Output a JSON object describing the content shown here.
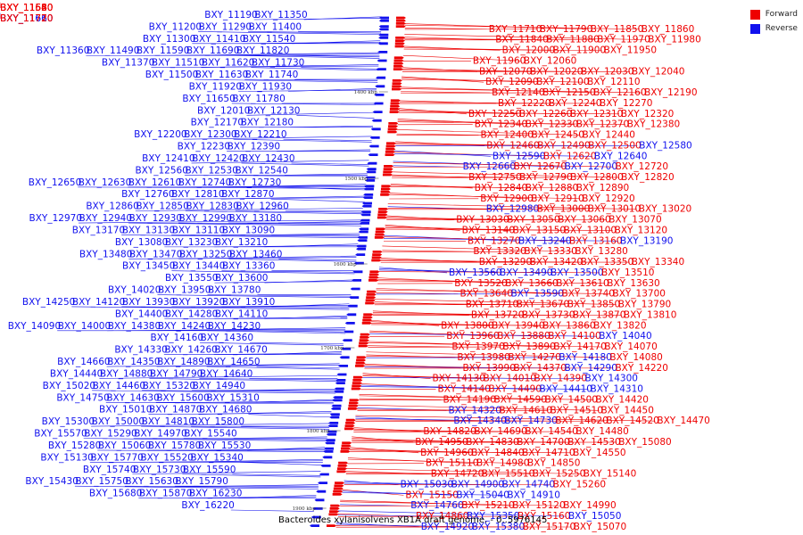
{
  "caption": "Bacteroides xylanisolvens XB1A draft genome. - 0..5976145",
  "legend": [
    {
      "label": "Forward",
      "color": "#ee0000"
    },
    {
      "label": "Reverse",
      "color": "#1111ee"
    }
  ],
  "ticks": [
    "1300 kbp",
    "1400 kbp",
    "1500 kbp",
    "1600 kbp",
    "1700 kbp",
    "1800 kbp",
    "1900 kbp"
  ],
  "left_labels": [
    "BXY_11190",
    "BXY_11350",
    "BXY_11200",
    "BXY_11290",
    "BXY_11400",
    "BXY_11300",
    "BXY_11410",
    "BXY_11540",
    "BXY_11360",
    "BXY_11490",
    "BXY_11590",
    "BXY_11690",
    "BXY_11820",
    "BXY_11370",
    "BXY_11510",
    "BXY_11620",
    "BXY_11730",
    "BXY_11500",
    "BXY_11630",
    "BXY_11740",
    "BXY_11920",
    "BXY_11930",
    "BXY_11650",
    "BXY_11780",
    "BXY_12010",
    "BXY_12130",
    "BXY_12170",
    "BXY_12180",
    "BXY_12200",
    "BXY_12300",
    "BXY_12210",
    "BXY_12230",
    "BXY_12390",
    "BXY_12410",
    "BXY_12420",
    "BXY_12430",
    "BXY_12560",
    "BXY_12530",
    "BXY_12540",
    "BXY_12650",
    "BXY_12630",
    "BXY_12610",
    "BXY_12740",
    "BXY_12730",
    "BXY_12760",
    "BXY_12810",
    "BXY_12870",
    "BXY_12860",
    "BXY_12850",
    "BXY_12830",
    "BXY_12960",
    "BXY_12970",
    "BXY_12940",
    "BXY_12930",
    "BXY_12990",
    "BXY_13180",
    "BXY_13170",
    "BXY_13130",
    "BXY_13110",
    "BXY_13090",
    "BXY_13080",
    "BXY_13230",
    "BXY_13210",
    "BXY_13480",
    "BXY_13470",
    "BXY_13250",
    "BXY_13460",
    "BXY_13450",
    "BXY_13440",
    "BXY_13360",
    "BXY_13550",
    "BXY_13600",
    "BXY_14020",
    "BXY_13950",
    "BXY_13780",
    "BXY_14250",
    "BXY_14120",
    "BXY_13930",
    "BXY_13920",
    "BXY_13910",
    "BXY_14400",
    "BXY_14280",
    "BXY_14110",
    "BXY_14090",
    "BXY_14000",
    "BXY_14380",
    "BXY_14240",
    "BXY_14230",
    "BXY_14160",
    "BXY_14360",
    "BXY_14330",
    "BXY_14260",
    "BXY_14670",
    "BXY_14660",
    "BXY_14350",
    "BXY_14890",
    "BXY_14650",
    "BXY_14440",
    "BXY_14880",
    "BXY_14790",
    "BXY_14640",
    "BXY_15020",
    "BXY_14460",
    "BXY_15320",
    "BXY_14940",
    "BXY_14750",
    "BXY_14630",
    "BXY_15600",
    "BXY_15310",
    "BXY_15010",
    "BXY_14870",
    "BXY_14680",
    "BXY_15580",
    "BXY_15300",
    "BXY_15000",
    "BXY_14810",
    "BXY_15800",
    "BXY_15570",
    "BXY_15290",
    "BXY_14970",
    "BXY_15540",
    "BXY_15280",
    "BXY_15060",
    "BXY_15780",
    "BXY_15530",
    "BXY_15240",
    "BXY_15130",
    "BXY_15770",
    "BXY_15520",
    "BXY_15340",
    "BXY_15740",
    "BXY_15730",
    "BXY_15590",
    "BXY_15430",
    "BXY_15750",
    "BXY_15630",
    "BXY_15790",
    "BXY_15680",
    "BXY_15870",
    "BXY_16230",
    "BXY_16220"
  ],
  "right_labels": [
    {
      "t": "BXY_11520",
      "c": "f"
    },
    {
      "t": "BXY_11560",
      "c": "f"
    },
    {
      "t": "BXY_11640",
      "c": "f"
    },
    {
      "t": "BXY_11680",
      "c": "f"
    },
    {
      "t": "BXY_11610",
      "c": "r"
    },
    {
      "t": "BXY_11660",
      "c": "r"
    },
    {
      "t": "BXY_11720",
      "c": "f"
    },
    {
      "t": "BXY_11770",
      "c": "f"
    },
    {
      "t": "BXY_11710",
      "c": "f"
    },
    {
      "t": "BXY_11790",
      "c": "f"
    },
    {
      "t": "BXY_11850",
      "c": "f"
    },
    {
      "t": "BXY_11860",
      "c": "f"
    },
    {
      "t": "BXY_11840",
      "c": "f"
    },
    {
      "t": "BXY_11880",
      "c": "f"
    },
    {
      "t": "BXY_11970",
      "c": "f"
    },
    {
      "t": "BXY_11980",
      "c": "f"
    },
    {
      "t": "BXY_12000",
      "c": "f"
    },
    {
      "t": "BXY_11900",
      "c": "f"
    },
    {
      "t": "BXY_11950",
      "c": "f"
    },
    {
      "t": "BXY_11960",
      "c": "f"
    },
    {
      "t": "BXY_12060",
      "c": "f"
    },
    {
      "t": "BXY_12070",
      "c": "f"
    },
    {
      "t": "BXY_12020",
      "c": "f"
    },
    {
      "t": "BXY_12030",
      "c": "f"
    },
    {
      "t": "BXY_12040",
      "c": "f"
    },
    {
      "t": "BXY_12090",
      "c": "f"
    },
    {
      "t": "BXY_12100",
      "c": "f"
    },
    {
      "t": "BXY_12110",
      "c": "f"
    },
    {
      "t": "BXY_12140",
      "c": "f"
    },
    {
      "t": "BXY_12150",
      "c": "f"
    },
    {
      "t": "BXY_12160",
      "c": "f"
    },
    {
      "t": "BXY_12190",
      "c": "f"
    },
    {
      "t": "BXY_12220",
      "c": "f"
    },
    {
      "t": "BXY_12240",
      "c": "f"
    },
    {
      "t": "BXY_12270",
      "c": "f"
    },
    {
      "t": "BXY_12250",
      "c": "f"
    },
    {
      "t": "BXY_12260",
      "c": "f"
    },
    {
      "t": "BXY_12310",
      "c": "f"
    },
    {
      "t": "BXY_12320",
      "c": "f"
    },
    {
      "t": "BXY_12340",
      "c": "f"
    },
    {
      "t": "BXY_12330",
      "c": "f"
    },
    {
      "t": "BXY_12370",
      "c": "f"
    },
    {
      "t": "BXY_12380",
      "c": "f"
    },
    {
      "t": "BXY_12400",
      "c": "f"
    },
    {
      "t": "BXY_12450",
      "c": "f"
    },
    {
      "t": "BXY_12440",
      "c": "f"
    },
    {
      "t": "BXY_12460",
      "c": "f"
    },
    {
      "t": "BXY_12490",
      "c": "f"
    },
    {
      "t": "BXY_12500",
      "c": "f"
    },
    {
      "t": "BXY_12580",
      "c": "r"
    },
    {
      "t": "BXY_12590",
      "c": "r"
    },
    {
      "t": "BXY_12620",
      "c": "f"
    },
    {
      "t": "BXY_12640",
      "c": "r"
    },
    {
      "t": "BXY_12660",
      "c": "r"
    },
    {
      "t": "BXY_12670",
      "c": "f"
    },
    {
      "t": "BXY_12700",
      "c": "r"
    },
    {
      "t": "BXY_12720",
      "c": "f"
    },
    {
      "t": "BXY_12750",
      "c": "f"
    },
    {
      "t": "BXY_12790",
      "c": "f"
    },
    {
      "t": "BXY_12800",
      "c": "f"
    },
    {
      "t": "BXY_12820",
      "c": "f"
    },
    {
      "t": "BXY_12840",
      "c": "f"
    },
    {
      "t": "BXY_12880",
      "c": "f"
    },
    {
      "t": "BXY_12890",
      "c": "f"
    },
    {
      "t": "BXY_12900",
      "c": "f"
    },
    {
      "t": "BXY_12910",
      "c": "f"
    },
    {
      "t": "BXY_12920",
      "c": "f"
    },
    {
      "t": "BXY_12980",
      "c": "r"
    },
    {
      "t": "BXY_13000",
      "c": "f"
    },
    {
      "t": "BXY_13010",
      "c": "f"
    },
    {
      "t": "BXY_13020",
      "c": "f"
    },
    {
      "t": "BXY_13030",
      "c": "f"
    },
    {
      "t": "BXY_13050",
      "c": "f"
    },
    {
      "t": "BXY_13060",
      "c": "f"
    },
    {
      "t": "BXY_13070",
      "c": "f"
    },
    {
      "t": "BXY_13140",
      "c": "f"
    },
    {
      "t": "BXY_13150",
      "c": "f"
    },
    {
      "t": "BXY_13100",
      "c": "f"
    },
    {
      "t": "BXY_13120",
      "c": "f"
    },
    {
      "t": "BXY_13270",
      "c": "f"
    },
    {
      "t": "BXY_13240",
      "c": "r"
    },
    {
      "t": "BXY_13160",
      "c": "f"
    },
    {
      "t": "BXY_13190",
      "c": "r"
    },
    {
      "t": "BXY_13320",
      "c": "f"
    },
    {
      "t": "BXY_13330",
      "c": "f"
    },
    {
      "t": "BXY_13280",
      "c": "f"
    },
    {
      "t": "BXY_13290",
      "c": "f"
    },
    {
      "t": "BXY_13420",
      "c": "f"
    },
    {
      "t": "BXY_13350",
      "c": "f"
    },
    {
      "t": "BXY_13340",
      "c": "f"
    },
    {
      "t": "BXY_13560",
      "c": "r"
    },
    {
      "t": "BXY_13490",
      "c": "r"
    },
    {
      "t": "BXY_13500",
      "c": "r"
    },
    {
      "t": "BXY_13510",
      "c": "f"
    },
    {
      "t": "BXY_13520",
      "c": "f"
    },
    {
      "t": "BXY_13660",
      "c": "f"
    },
    {
      "t": "BXY_13610",
      "c": "f"
    },
    {
      "t": "BXY_13630",
      "c": "f"
    },
    {
      "t": "BXY_13640",
      "c": "f"
    },
    {
      "t": "BXY_13590",
      "c": "r"
    },
    {
      "t": "BXY_13740",
      "c": "f"
    },
    {
      "t": "BXY_13700",
      "c": "f"
    },
    {
      "t": "BXY_13710",
      "c": "f"
    },
    {
      "t": "BXY_13670",
      "c": "f"
    },
    {
      "t": "BXY_13850",
      "c": "f"
    },
    {
      "t": "BXY_13790",
      "c": "f"
    },
    {
      "t": "BXY_13720",
      "c": "f"
    },
    {
      "t": "BXY_13730",
      "c": "f"
    },
    {
      "t": "BXY_13870",
      "c": "f"
    },
    {
      "t": "BXY_13810",
      "c": "f"
    },
    {
      "t": "BXY_13800",
      "c": "f"
    },
    {
      "t": "BXY_13940",
      "c": "f"
    },
    {
      "t": "BXY_13860",
      "c": "f"
    },
    {
      "t": "BXY_13820",
      "c": "f"
    },
    {
      "t": "BXY_13960",
      "c": "f"
    },
    {
      "t": "BXY_13880",
      "c": "f"
    },
    {
      "t": "BXY_14100",
      "c": "f"
    },
    {
      "t": "BXY_14040",
      "c": "r"
    },
    {
      "t": "BXY_13970",
      "c": "f"
    },
    {
      "t": "BXY_13890",
      "c": "f"
    },
    {
      "t": "BXY_14170",
      "c": "f"
    },
    {
      "t": "BXY_14070",
      "c": "f"
    },
    {
      "t": "BXY_13980",
      "c": "f"
    },
    {
      "t": "BXY_14270",
      "c": "f"
    },
    {
      "t": "BXY_14180",
      "c": "r"
    },
    {
      "t": "BXY_14080",
      "c": "f"
    },
    {
      "t": "BXY_13990",
      "c": "f"
    },
    {
      "t": "BXY_14370",
      "c": "f"
    },
    {
      "t": "BXY_14290",
      "c": "r"
    },
    {
      "t": "BXY_14220",
      "c": "f"
    },
    {
      "t": "BXY_14130",
      "c": "f"
    },
    {
      "t": "BXY_14010",
      "c": "f"
    },
    {
      "t": "BXY_14390",
      "c": "f"
    },
    {
      "t": "BXY_14300",
      "c": "r"
    },
    {
      "t": "BXY_14140",
      "c": "f"
    },
    {
      "t": "BXY_14490",
      "c": "f"
    },
    {
      "t": "BXY_14410",
      "c": "r"
    },
    {
      "t": "BXY_14310",
      "c": "r"
    },
    {
      "t": "BXY_14190",
      "c": "f"
    },
    {
      "t": "BXY_14590",
      "c": "f"
    },
    {
      "t": "BXY_14500",
      "c": "f"
    },
    {
      "t": "BXY_14420",
      "c": "f"
    },
    {
      "t": "BXY_14320",
      "c": "r"
    },
    {
      "t": "BXY_14610",
      "c": "f"
    },
    {
      "t": "BXY_14510",
      "c": "f"
    },
    {
      "t": "BXY_14450",
      "c": "f"
    },
    {
      "t": "BXY_14340",
      "c": "r"
    },
    {
      "t": "BXY_14730",
      "c": "r"
    },
    {
      "t": "BXY_14620",
      "c": "f"
    },
    {
      "t": "BXY_14520",
      "c": "f"
    },
    {
      "t": "BXY_14470",
      "c": "f"
    },
    {
      "t": "BXY_14820",
      "c": "f"
    },
    {
      "t": "BXY_14690",
      "c": "f"
    },
    {
      "t": "BXY_14540",
      "c": "f"
    },
    {
      "t": "BXY_14480",
      "c": "f"
    },
    {
      "t": "BXY_14950",
      "c": "f"
    },
    {
      "t": "BXY_14830",
      "c": "f"
    },
    {
      "t": "BXY_14700",
      "c": "f"
    },
    {
      "t": "BXY_14530",
      "c": "f"
    },
    {
      "t": "BXY_15080",
      "c": "f"
    },
    {
      "t": "BXY_14960",
      "c": "f"
    },
    {
      "t": "BXY_14840",
      "c": "f"
    },
    {
      "t": "BXY_14710",
      "c": "f"
    },
    {
      "t": "BXY_14550",
      "c": "f"
    },
    {
      "t": "BXY_15110",
      "c": "f"
    },
    {
      "t": "BXY_14980",
      "c": "f"
    },
    {
      "t": "BXY_14850",
      "c": "f"
    },
    {
      "t": "BXY_14720",
      "c": "f"
    },
    {
      "t": "BXY_15510",
      "c": "f"
    },
    {
      "t": "BXY_15250",
      "c": "f"
    },
    {
      "t": "BXY_15140",
      "c": "f"
    },
    {
      "t": "BXY_15030",
      "c": "r"
    },
    {
      "t": "BXY_14900",
      "c": "r"
    },
    {
      "t": "BXY_14740",
      "c": "r"
    },
    {
      "t": "BXY_15260",
      "c": "f"
    },
    {
      "t": "BXY_15150",
      "c": "f"
    },
    {
      "t": "BXY_15040",
      "c": "r"
    },
    {
      "t": "BXY_14910",
      "c": "r"
    },
    {
      "t": "BXY_14760",
      "c": "r"
    },
    {
      "t": "BXY_15210",
      "c": "f"
    },
    {
      "t": "BXY_15120",
      "c": "f"
    },
    {
      "t": "BXY_14990",
      "c": "f"
    },
    {
      "t": "BXY_14860",
      "c": "f"
    },
    {
      "t": "BXY_15350",
      "c": "r"
    },
    {
      "t": "BXY_15160",
      "c": "f"
    },
    {
      "t": "BXY_15050",
      "c": "r"
    },
    {
      "t": "BXY_14920",
      "c": "r"
    },
    {
      "t": "BXY_15380",
      "c": "r"
    },
    {
      "t": "BXY_15170",
      "c": "f"
    },
    {
      "t": "BXY_15070",
      "c": "f"
    }
  ]
}
